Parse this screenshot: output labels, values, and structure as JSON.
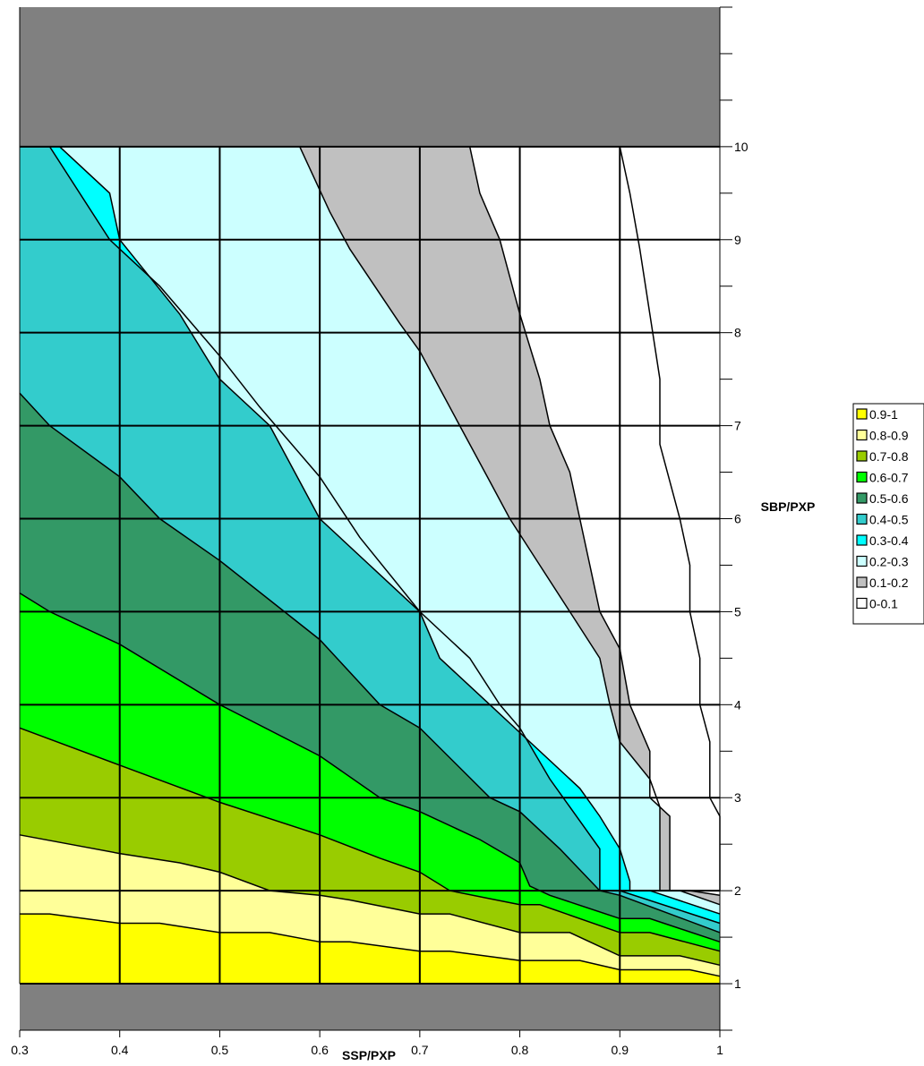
{
  "chart_data": {
    "type": "contour",
    "xlabel": "SSP/PXP",
    "ylabel": "SBP/PXP",
    "x_ticks": [
      "0.3",
      "0.4",
      "0.5",
      "0.6",
      "0.7",
      "0.8",
      "0.9",
      "1"
    ],
    "y_ticks": [
      "1",
      "2",
      "3",
      "4",
      "5",
      "6",
      "7",
      "8",
      "9",
      "10"
    ],
    "xlim": [
      0.3,
      1.0
    ],
    "ylim": [
      0.5,
      11.5
    ],
    "data_region_y": [
      1,
      10
    ],
    "grid": true,
    "legend_position": "right",
    "out_of_range_color": "#808080",
    "bands": [
      {
        "label": "0.9-1",
        "color": "#ffff00"
      },
      {
        "label": "0.8-0.9",
        "color": "#ffff99"
      },
      {
        "label": "0.7-0.8",
        "color": "#99cc00"
      },
      {
        "label": "0.6-0.7",
        "color": "#00ff00"
      },
      {
        "label": "0.5-0.6",
        "color": "#339966"
      },
      {
        "label": "0.4-0.5",
        "color": "#33cccc"
      },
      {
        "label": "0.3-0.4",
        "color": "#00ffff"
      },
      {
        "label": "0.2-0.3",
        "color": "#ccffff"
      },
      {
        "label": "0.1-0.2",
        "color": "#c0c0c0"
      },
      {
        "label": "0-0.1",
        "color": "#ffffff"
      }
    ],
    "contours": [
      {
        "level": 0.9,
        "points": [
          [
            0.3,
            1.75
          ],
          [
            0.33,
            1.75
          ],
          [
            0.4,
            1.65
          ],
          [
            0.44,
            1.65
          ],
          [
            0.5,
            1.55
          ],
          [
            0.55,
            1.55
          ],
          [
            0.6,
            1.45
          ],
          [
            0.63,
            1.45
          ],
          [
            0.7,
            1.35
          ],
          [
            0.73,
            1.35
          ],
          [
            0.8,
            1.25
          ],
          [
            0.86,
            1.25
          ],
          [
            0.9,
            1.15
          ],
          [
            0.97,
            1.15
          ],
          [
            1.0,
            1.08
          ]
        ]
      },
      {
        "level": 0.8,
        "points": [
          [
            0.3,
            2.6
          ],
          [
            0.35,
            2.5
          ],
          [
            0.4,
            2.4
          ],
          [
            0.46,
            2.3
          ],
          [
            0.5,
            2.2
          ],
          [
            0.55,
            2.0
          ],
          [
            0.6,
            1.95
          ],
          [
            0.63,
            1.9
          ],
          [
            0.7,
            1.75
          ],
          [
            0.73,
            1.75
          ],
          [
            0.8,
            1.55
          ],
          [
            0.85,
            1.55
          ],
          [
            0.9,
            1.3
          ],
          [
            0.96,
            1.3
          ],
          [
            1.0,
            1.2
          ]
        ]
      },
      {
        "level": 0.7,
        "points": [
          [
            0.3,
            3.75
          ],
          [
            0.4,
            3.35
          ],
          [
            0.5,
            2.95
          ],
          [
            0.6,
            2.6
          ],
          [
            0.66,
            2.35
          ],
          [
            0.7,
            2.2
          ],
          [
            0.73,
            2.0
          ],
          [
            0.8,
            1.85
          ],
          [
            0.82,
            1.85
          ],
          [
            0.9,
            1.55
          ],
          [
            0.93,
            1.55
          ],
          [
            1.0,
            1.35
          ]
        ]
      },
      {
        "level": 0.6,
        "points": [
          [
            0.3,
            5.2
          ],
          [
            0.33,
            5.0
          ],
          [
            0.4,
            4.65
          ],
          [
            0.5,
            4.0
          ],
          [
            0.6,
            3.45
          ],
          [
            0.66,
            3.0
          ],
          [
            0.7,
            2.85
          ],
          [
            0.76,
            2.55
          ],
          [
            0.8,
            2.3
          ],
          [
            0.81,
            2.05
          ],
          [
            0.83,
            1.95
          ],
          [
            0.9,
            1.7
          ],
          [
            0.93,
            1.7
          ],
          [
            1.0,
            1.45
          ]
        ]
      },
      {
        "level": 0.5,
        "points": [
          [
            0.3,
            7.35
          ],
          [
            0.33,
            7.0
          ],
          [
            0.4,
            6.45
          ],
          [
            0.44,
            6.0
          ],
          [
            0.5,
            5.55
          ],
          [
            0.6,
            4.7
          ],
          [
            0.66,
            4.0
          ],
          [
            0.7,
            3.75
          ],
          [
            0.77,
            3.0
          ],
          [
            0.8,
            2.85
          ],
          [
            0.84,
            2.45
          ],
          [
            0.88,
            2.0
          ],
          [
            0.9,
            1.95
          ],
          [
            1.0,
            1.55
          ]
        ]
      },
      {
        "level": 0.4,
        "points": [
          [
            0.3,
            10.0
          ],
          [
            0.33,
            10.0
          ],
          [
            0.39,
            9.0
          ],
          [
            0.44,
            8.5
          ],
          [
            0.5,
            7.75
          ],
          [
            0.54,
            7.2
          ],
          [
            0.6,
            6.45
          ],
          [
            0.64,
            5.8
          ],
          [
            0.7,
            5.0
          ],
          [
            0.75,
            4.5
          ],
          [
            0.78,
            4.0
          ],
          [
            0.8,
            3.75
          ],
          [
            0.83,
            3.2
          ],
          [
            0.86,
            2.75
          ],
          [
            0.88,
            2.45
          ],
          [
            0.88,
            2.0
          ],
          [
            0.9,
            2.0
          ],
          [
            1.0,
            1.65
          ]
        ]
      },
      {
        "level": 0.3,
        "points": [
          [
            0.34,
            10.0
          ],
          [
            0.39,
            9.5
          ],
          [
            0.4,
            9.0
          ],
          [
            0.46,
            8.2
          ],
          [
            0.5,
            7.5
          ],
          [
            0.55,
            7.0
          ],
          [
            0.6,
            6.0
          ],
          [
            0.65,
            5.5
          ],
          [
            0.7,
            5.0
          ],
          [
            0.72,
            4.5
          ],
          [
            0.77,
            4.0
          ],
          [
            0.8,
            3.7
          ],
          [
            0.86,
            3.1
          ],
          [
            0.88,
            2.8
          ],
          [
            0.9,
            2.45
          ],
          [
            0.91,
            2.1
          ],
          [
            0.91,
            2.0
          ],
          [
            0.93,
            2.0
          ],
          [
            1.0,
            1.75
          ]
        ]
      },
      {
        "level": 0.2,
        "points": [
          [
            0.58,
            10.0
          ],
          [
            0.61,
            9.3
          ],
          [
            0.63,
            8.9
          ],
          [
            0.68,
            8.1
          ],
          [
            0.7,
            7.8
          ],
          [
            0.74,
            7.0
          ],
          [
            0.77,
            6.4
          ],
          [
            0.79,
            6.0
          ],
          [
            0.82,
            5.5
          ],
          [
            0.85,
            5.0
          ],
          [
            0.88,
            4.5
          ],
          [
            0.89,
            4.0
          ],
          [
            0.9,
            3.6
          ],
          [
            0.93,
            3.2
          ],
          [
            0.94,
            2.9
          ],
          [
            0.94,
            2.0
          ],
          [
            0.96,
            2.0
          ],
          [
            1.0,
            1.85
          ]
        ]
      },
      {
        "level": 0.1,
        "points": [
          [
            0.75,
            10.0
          ],
          [
            0.76,
            9.5
          ],
          [
            0.78,
            9.0
          ],
          [
            0.79,
            8.6
          ],
          [
            0.8,
            8.2
          ],
          [
            0.82,
            7.5
          ],
          [
            0.83,
            7.0
          ],
          [
            0.85,
            6.5
          ],
          [
            0.86,
            6.0
          ],
          [
            0.87,
            5.5
          ],
          [
            0.88,
            5.0
          ],
          [
            0.9,
            4.6
          ],
          [
            0.91,
            4.0
          ],
          [
            0.93,
            3.5
          ],
          [
            0.93,
            3.0
          ],
          [
            0.95,
            2.8
          ],
          [
            0.95,
            2.0
          ],
          [
            0.97,
            2.0
          ],
          [
            1.0,
            1.95
          ]
        ]
      },
      {
        "level": 0.05,
        "points": [
          [
            0.9,
            10.0
          ],
          [
            0.91,
            9.5
          ],
          [
            0.92,
            8.9
          ],
          [
            0.93,
            8.2
          ],
          [
            0.94,
            7.5
          ],
          [
            0.94,
            6.8
          ],
          [
            0.96,
            6.0
          ],
          [
            0.97,
            5.5
          ],
          [
            0.97,
            5.0
          ],
          [
            0.98,
            4.5
          ],
          [
            0.98,
            4.0
          ],
          [
            0.99,
            3.6
          ],
          [
            0.99,
            3.0
          ],
          [
            1.0,
            2.8
          ],
          [
            1.0,
            2.0
          ]
        ]
      }
    ]
  }
}
